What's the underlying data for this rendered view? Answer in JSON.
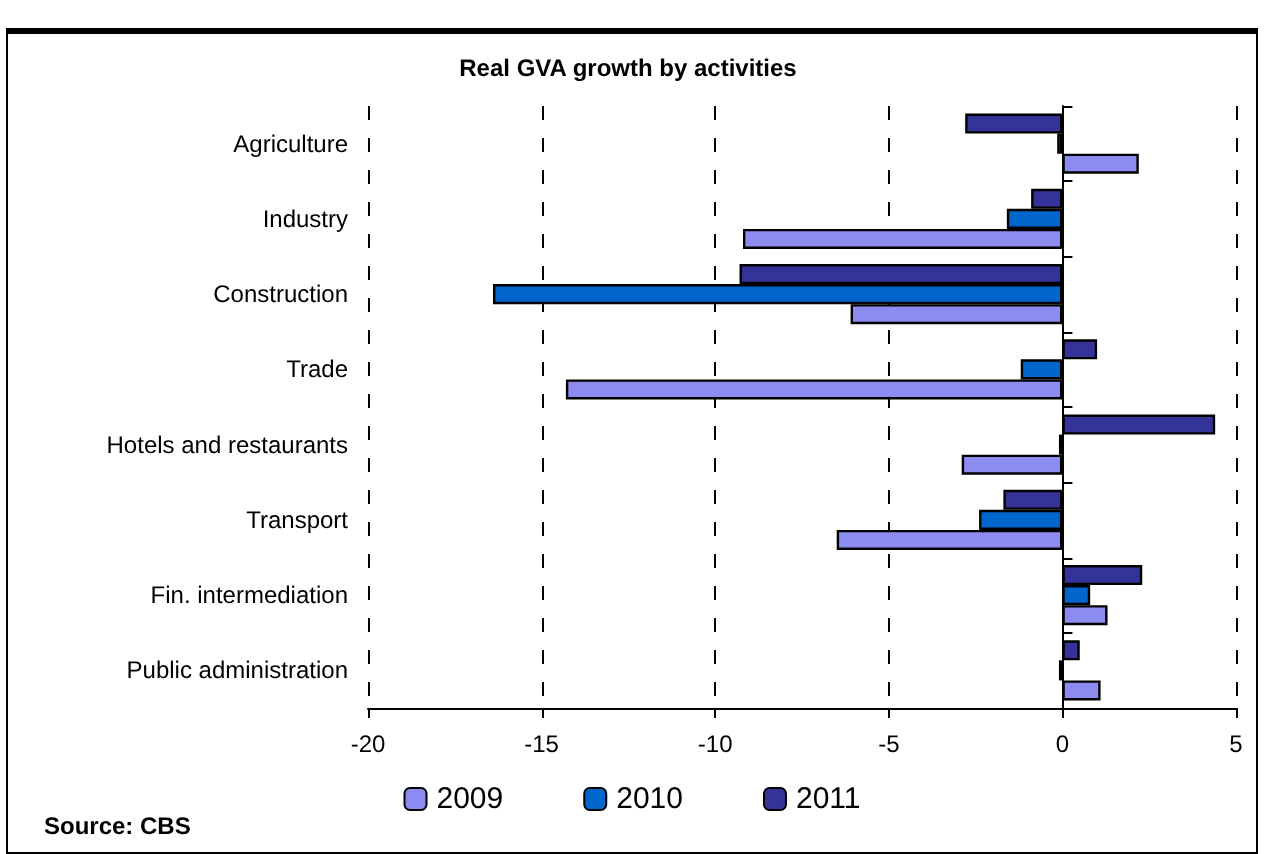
{
  "chart_data": {
    "type": "bar",
    "orientation": "horizontal",
    "title": "Real GVA growth by activities",
    "categories": [
      "Agriculture",
      "Industry",
      "Construction",
      "Trade",
      "Hotels and restaurants",
      "Transport",
      "Fin. intermediation",
      "Public administration"
    ],
    "series": [
      {
        "name": "2009",
        "color": "#8b8bf0",
        "values": [
          2.2,
          -9.2,
          -6.1,
          -14.3,
          -2.9,
          -6.5,
          1.3,
          1.1
        ]
      },
      {
        "name": "2010",
        "color": "#0066cc",
        "values": [
          -0.15,
          -1.6,
          -16.4,
          -1.2,
          -0.1,
          -2.4,
          0.8,
          -0.1
        ]
      },
      {
        "name": "2011",
        "color": "#333399",
        "values": [
          -2.8,
          -0.9,
          -9.3,
          1.0,
          4.4,
          -1.7,
          2.3,
          0.5
        ]
      }
    ],
    "xlim": [
      -20,
      5
    ],
    "xticks": [
      -20,
      -15,
      -10,
      -5,
      0,
      5
    ],
    "grid": "x",
    "legend": "bottom",
    "annotations": [
      "Source: CBS"
    ]
  }
}
